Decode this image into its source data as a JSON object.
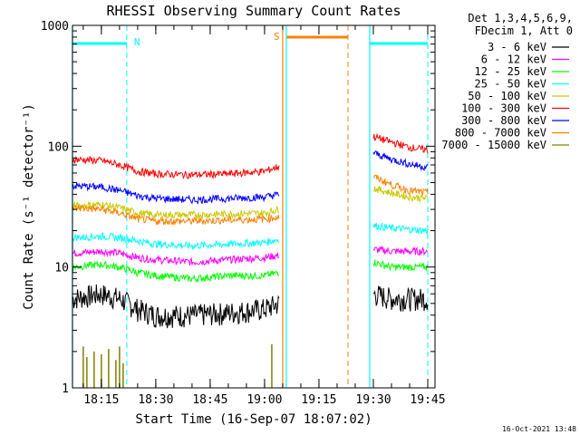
{
  "chart_data": {
    "type": "line",
    "title": "RHESSI Observing Summary Count Rates",
    "xlabel": "Start Time (16-Sep-07 18:07:02)",
    "ylabel": "Count Rate (s⁻¹ detector⁻¹)",
    "yscale": "log",
    "ylim": [
      1,
      1000
    ],
    "xlim": [
      "18:07:02",
      "19:47:00"
    ],
    "x_ticks": [
      "18:15",
      "18:30",
      "18:45",
      "19:00",
      "19:15",
      "19:30",
      "19:45"
    ],
    "y_ticks": [
      "1",
      "10",
      "100",
      "1000"
    ],
    "legend_header": [
      "Det 1,3,4,5,6,9,",
      "FDecim 1, Att 0"
    ],
    "legend_position": "right",
    "series": [
      {
        "name": "3 - 6 keV",
        "color": "#000000",
        "seg1": {
          "x": [
            "18:07",
            "18:15",
            "18:20",
            "18:25",
            "18:30",
            "18:40",
            "18:50",
            "19:00",
            "19:04"
          ],
          "y": [
            5.5,
            6,
            5.5,
            4.5,
            4,
            4,
            4.2,
            4.5,
            5
          ]
        },
        "seg2": {
          "x": [
            "19:30",
            "19:35",
            "19:40",
            "19:45"
          ],
          "y": [
            6,
            5.5,
            5.5,
            5.5
          ]
        }
      },
      {
        "name": "6 - 12 keV",
        "color": "#ff00ff",
        "seg1": {
          "x": [
            "18:07",
            "18:15",
            "18:20",
            "18:25",
            "18:30",
            "18:40",
            "18:50",
            "19:00",
            "19:04"
          ],
          "y": [
            13,
            13.5,
            13,
            12,
            11.5,
            11,
            11.5,
            12,
            12.5
          ]
        },
        "seg2": {
          "x": [
            "19:30",
            "19:35",
            "19:40",
            "19:45"
          ],
          "y": [
            14,
            13.5,
            13.5,
            13.5
          ]
        }
      },
      {
        "name": "12 - 25 keV",
        "color": "#00ff00",
        "seg1": {
          "x": [
            "18:07",
            "18:15",
            "18:20",
            "18:25",
            "18:30",
            "18:40",
            "18:50",
            "19:00",
            "19:04"
          ],
          "y": [
            10,
            10.5,
            10,
            9,
            8.5,
            8,
            8.5,
            8.5,
            9
          ]
        },
        "seg2": {
          "x": [
            "19:30",
            "19:35",
            "19:40",
            "19:45"
          ],
          "y": [
            11,
            10,
            10,
            10
          ]
        }
      },
      {
        "name": "25 - 50 keV",
        "color": "#00ffff",
        "seg1": {
          "x": [
            "18:07",
            "18:15",
            "18:20",
            "18:25",
            "18:30",
            "18:40",
            "18:50",
            "19:00",
            "19:04"
          ],
          "y": [
            17.5,
            18,
            17.5,
            16.5,
            15.5,
            15,
            15.5,
            16,
            17
          ]
        },
        "seg2": {
          "x": [
            "19:30",
            "19:35",
            "19:40",
            "19:45"
          ],
          "y": [
            22,
            21,
            20.5,
            20
          ]
        }
      },
      {
        "name": "50 - 100 keV",
        "color": "#c8c800",
        "seg1": {
          "x": [
            "18:07",
            "18:15",
            "18:20",
            "18:25",
            "18:30",
            "18:40",
            "18:50",
            "19:00",
            "19:04"
          ],
          "y": [
            32,
            33,
            31,
            28,
            27,
            27,
            27.5,
            28,
            30
          ]
        },
        "seg2": {
          "x": [
            "19:30",
            "19:35",
            "19:40",
            "19:45"
          ],
          "y": [
            45,
            41,
            38,
            37
          ]
        }
      },
      {
        "name": "100 - 300 keV",
        "color": "#ff0000",
        "seg1": {
          "x": [
            "18:07",
            "18:15",
            "18:20",
            "18:25",
            "18:30",
            "18:40",
            "18:50",
            "19:00",
            "19:04"
          ],
          "y": [
            78,
            76,
            70,
            62,
            59,
            58,
            59,
            62,
            68
          ]
        },
        "seg2": {
          "x": [
            "19:30",
            "19:35",
            "19:40",
            "19:45"
          ],
          "y": [
            120,
            108,
            98,
            93
          ]
        }
      },
      {
        "name": "300 - 800 keV",
        "color": "#0000ff",
        "seg1": {
          "x": [
            "18:07",
            "18:15",
            "18:20",
            "18:25",
            "18:30",
            "18:40",
            "18:50",
            "19:00",
            "19:04"
          ],
          "y": [
            47,
            46,
            43,
            39,
            37,
            36,
            37,
            38,
            40
          ]
        },
        "seg2": {
          "x": [
            "19:30",
            "19:35",
            "19:40",
            "19:45"
          ],
          "y": [
            88,
            78,
            71,
            67
          ]
        }
      },
      {
        "name": "800 - 7000 keV",
        "color": "#ff8000",
        "seg1": {
          "x": [
            "18:07",
            "18:15",
            "18:20",
            "18:25",
            "18:30",
            "18:40",
            "18:50",
            "19:00",
            "19:04"
          ],
          "y": [
            31,
            30,
            28,
            25,
            24,
            24,
            24.5,
            25,
            26
          ]
        },
        "seg2": {
          "x": [
            "19:30",
            "19:35",
            "19:40",
            "19:45"
          ],
          "y": [
            56,
            48,
            43,
            41
          ]
        }
      },
      {
        "name": "7000 - 15000 keV",
        "color": "#808000",
        "spikes": {
          "x": [
            "18:10",
            "18:11",
            "18:13",
            "18:15",
            "18:17",
            "18:19",
            "18:20",
            "18:21",
            "19:02"
          ],
          "y": [
            2.2,
            1.8,
            2.0,
            1.9,
            2.1,
            1.7,
            2.2,
            1.6,
            2.3
          ]
        }
      }
    ],
    "flags": [
      {
        "label": "N",
        "color": "#00ffff",
        "markers": [
          {
            "start": "18:07",
            "end": "18:22"
          },
          {
            "start": "19:29",
            "end": "19:45"
          }
        ],
        "dashed_lines": [
          "18:22",
          "19:45"
        ],
        "solid_lines": [
          "18:07",
          "19:29"
        ]
      },
      {
        "label": "S",
        "color": "#ff8000",
        "markers": [
          {
            "start": "19:06",
            "end": "19:23"
          }
        ],
        "dashed_lines": [
          "19:23"
        ],
        "solid_lines": [
          "19:05"
        ]
      }
    ],
    "extra_solid_lines": [
      {
        "t": "19:06",
        "color": "#00ffff"
      }
    ],
    "timestamp": "16-Oct-2021 13:48"
  }
}
